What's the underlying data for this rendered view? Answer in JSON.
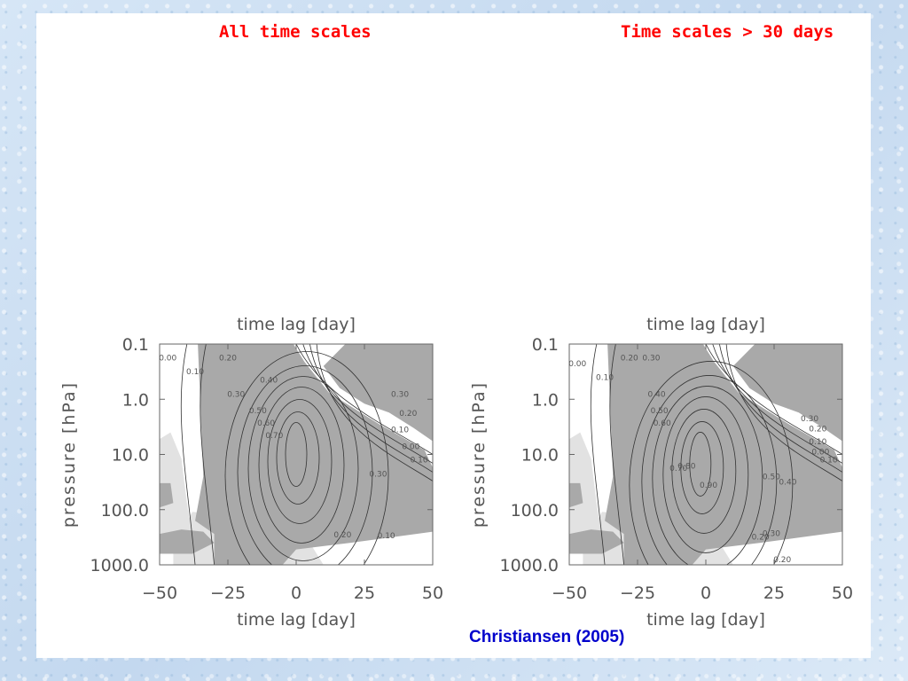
{
  "headers": {
    "left": "All time scales",
    "right": "Time scales > 30 days"
  },
  "citation": "Christiansen (2005)",
  "chart_data": [
    {
      "type": "heatmap",
      "panel": "left",
      "xlabel": "time lag [day]",
      "ylabel": "pressure [hPa]",
      "xticks": [
        -50,
        -25,
        0,
        25,
        50
      ],
      "xtick_labels": [
        "−50",
        "−25",
        "0",
        "25",
        "50"
      ],
      "yticks": [
        0.1,
        1.0,
        10.0,
        100.0,
        1000.0
      ],
      "ytick_labels": [
        "0.1",
        "1.0",
        "10.0",
        "100.0",
        "1000.0"
      ],
      "xlim": [
        -50,
        50
      ],
      "ylim": [
        1000.0,
        0.1
      ],
      "y_scale": "log",
      "shading": "grey where the correlation is significant",
      "max_value": {
        "x": 0,
        "y": 10.0,
        "value": 0.8
      },
      "contour_labels": [
        {
          "text": "0.00",
          "x": -47,
          "y": 0.2
        },
        {
          "text": "0.10",
          "x": -37,
          "y": 0.35
        },
        {
          "text": "0.20",
          "x": -25,
          "y": 0.2
        },
        {
          "text": "0.30",
          "x": -22,
          "y": 0.9
        },
        {
          "text": "0.40",
          "x": -10,
          "y": 0.5
        },
        {
          "text": "0.50",
          "x": -14,
          "y": 1.8
        },
        {
          "text": "0.60",
          "x": -11,
          "y": 3.0
        },
        {
          "text": "0.70",
          "x": -8,
          "y": 5.0
        },
        {
          "text": "0.30",
          "x": 38,
          "y": 0.9
        },
        {
          "text": "0.20",
          "x": 41,
          "y": 2.0
        },
        {
          "text": "0.10",
          "x": 38,
          "y": 4.0
        },
        {
          "text": "0.00",
          "x": 42,
          "y": 8.0
        },
        {
          "text": "0.10",
          "x": 45,
          "y": 14.0
        },
        {
          "text": "0.30",
          "x": 30,
          "y": 25.0
        },
        {
          "text": "0.20",
          "x": 17,
          "y": 320.0
        },
        {
          "text": "0.10",
          "x": 33,
          "y": 330.0
        }
      ]
    },
    {
      "type": "heatmap",
      "panel": "right",
      "xlabel": "time lag [day]",
      "ylabel": "pressure [hPa]",
      "xticks": [
        -50,
        -25,
        0,
        25,
        50
      ],
      "xtick_labels": [
        "−50",
        "−25",
        "0",
        "25",
        "50"
      ],
      "yticks": [
        0.1,
        1.0,
        10.0,
        100.0,
        1000.0
      ],
      "ytick_labels": [
        "0.1",
        "1.0",
        "10.0",
        "100.0",
        "1000.0"
      ],
      "xlim": [
        -50,
        50
      ],
      "ylim": [
        1000.0,
        0.1
      ],
      "y_scale": "log",
      "shading": "grey where the correlation is significant",
      "max_value": {
        "x": -2,
        "y": 15.0,
        "value": 0.9
      },
      "contour_labels": [
        {
          "text": "0.00",
          "x": -47,
          "y": 0.25
        },
        {
          "text": "0.10",
          "x": -37,
          "y": 0.45
        },
        {
          "text": "0.20",
          "x": -28,
          "y": 0.2
        },
        {
          "text": "0.30",
          "x": -20,
          "y": 0.2
        },
        {
          "text": "0.40",
          "x": -18,
          "y": 0.9
        },
        {
          "text": "0.50",
          "x": -17,
          "y": 1.8
        },
        {
          "text": "0.60",
          "x": -16,
          "y": 3.0
        },
        {
          "text": "0.70",
          "x": -10,
          "y": 20.0
        },
        {
          "text": "0.80",
          "x": -7,
          "y": 18.0
        },
        {
          "text": "0.90",
          "x": 1,
          "y": 40.0
        },
        {
          "text": "0.50",
          "x": 24,
          "y": 28.0
        },
        {
          "text": "0.40",
          "x": 30,
          "y": 35.0
        },
        {
          "text": "0.30",
          "x": 38,
          "y": 2.5
        },
        {
          "text": "0.20",
          "x": 41,
          "y": 3.8
        },
        {
          "text": "0.10",
          "x": 41,
          "y": 6.5
        },
        {
          "text": "0.00",
          "x": 42,
          "y": 10.0
        },
        {
          "text": "0.10",
          "x": 45,
          "y": 14.0
        },
        {
          "text": "0.30",
          "x": 24,
          "y": 300.0
        },
        {
          "text": "0.20",
          "x": 20,
          "y": 350.0
        },
        {
          "text": "0.20",
          "x": 28,
          "y": 900.0
        }
      ]
    }
  ]
}
